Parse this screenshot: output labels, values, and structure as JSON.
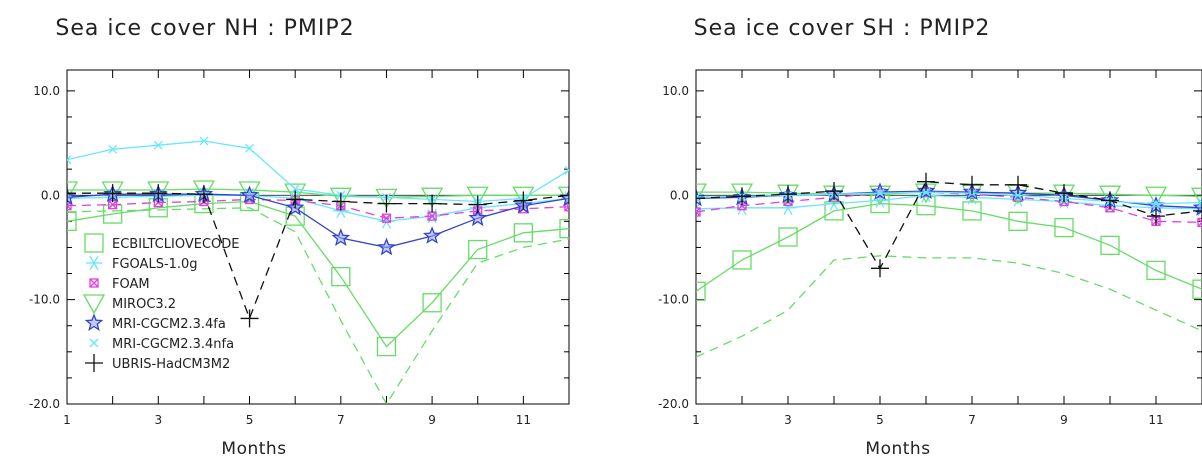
{
  "chart_data": [
    {
      "type": "line",
      "title": "Sea ice cover NH : PMIP2",
      "xlabel": "Months",
      "ylabel": "",
      "xlim": [
        1,
        12
      ],
      "ylim": [
        -20,
        12
      ],
      "xticks": [
        1,
        3,
        5,
        7,
        9,
        11
      ],
      "yticks": [
        "10.0",
        "0.0",
        "-10.0",
        "-20.0"
      ],
      "yticks_values": [
        10,
        0,
        -10,
        -20
      ],
      "grid": false,
      "legend_position": "bottom-left",
      "x": [
        1,
        2,
        3,
        4,
        5,
        6,
        7,
        8,
        9,
        10,
        11,
        12
      ],
      "series": [
        {
          "name": "ECBILTCLIOVECODE",
          "color": "#66dd66",
          "marker": "square",
          "dash": false,
          "values": [
            -2.5,
            -1.8,
            -1.2,
            -0.8,
            -0.6,
            -2.0,
            -7.8,
            -14.5,
            -10.3,
            -5.2,
            -3.6,
            -3.2
          ]
        },
        {
          "name": "",
          "color": "#66dd66",
          "marker": "none",
          "dash": true,
          "values": [
            -1.6,
            -1.5,
            -1.4,
            -1.3,
            -1.2,
            -3.5,
            -12.0,
            -20.0,
            -13.0,
            -6.5,
            -5.0,
            -4.2
          ]
        },
        {
          "name": "FGOALS-1.0g",
          "color": "#66e6ff",
          "marker": "asterisk",
          "dash": false,
          "values": [
            -0.3,
            -0.2,
            -0.1,
            0.0,
            0.0,
            -0.3,
            -1.5,
            -2.5,
            -2.0,
            -1.2,
            -0.8,
            -0.3
          ]
        },
        {
          "name": "FOAM",
          "color": "#e040e0",
          "marker": "xsquare",
          "dash": true,
          "values": [
            -1.0,
            -0.9,
            -0.7,
            -0.6,
            -0.4,
            -0.5,
            -1.0,
            -2.2,
            -2.0,
            -1.5,
            -1.3,
            -1.1
          ]
        },
        {
          "name": "MIROC3.2",
          "color": "#66dd66",
          "marker": "triangle",
          "dash": false,
          "values": [
            0.5,
            0.5,
            0.5,
            0.6,
            0.5,
            0.3,
            -0.1,
            -0.2,
            -0.1,
            0.0,
            0.0,
            0.0
          ]
        },
        {
          "name": "MRI-CGCM2.3.4fa",
          "color": "#3344cc",
          "marker": "star",
          "dash": false,
          "values": [
            -0.2,
            0.1,
            0.1,
            0.1,
            0.0,
            -1.2,
            -4.1,
            -5.0,
            -3.9,
            -2.2,
            -1.0,
            -0.3
          ]
        },
        {
          "name": "MRI-CGCM2.3.4nfa",
          "color": "#66e6ff",
          "marker": "x",
          "dash": false,
          "values": [
            3.4,
            4.4,
            4.8,
            5.2,
            4.5,
            0.6,
            0.0,
            -0.2,
            -0.4,
            -0.6,
            -0.3,
            2.4
          ]
        },
        {
          "name": "UBRIS-HadCM3M2",
          "color": "#111111",
          "marker": "plus",
          "dash": true,
          "values": [
            0.2,
            0.2,
            0.2,
            0.1,
            -11.8,
            -0.4,
            -0.6,
            -0.8,
            -0.8,
            -0.9,
            -0.5,
            0.0
          ]
        }
      ]
    },
    {
      "type": "line",
      "title": "Sea ice cover SH : PMIP2",
      "xlabel": "Months",
      "ylabel": "",
      "xlim": [
        1,
        12
      ],
      "ylim": [
        -20,
        12
      ],
      "xticks": [
        1,
        3,
        5,
        7,
        9,
        11
      ],
      "yticks": [
        "10.0",
        "0.0",
        "-10.0",
        "-20.0"
      ],
      "yticks_values": [
        10,
        0,
        -10,
        -20
      ],
      "grid": false,
      "x": [
        1,
        2,
        3,
        4,
        5,
        6,
        7,
        8,
        9,
        10,
        11,
        12
      ],
      "series": [
        {
          "name": "ECBILTCLIOVECODE",
          "color": "#66dd66",
          "marker": "square",
          "dash": false,
          "values": [
            -9.2,
            -6.2,
            -4.0,
            -1.5,
            -0.8,
            -1.0,
            -1.5,
            -2.5,
            -3.1,
            -4.8,
            -7.2,
            -9.0
          ]
        },
        {
          "name": "",
          "color": "#66dd66",
          "marker": "none",
          "dash": true,
          "values": [
            -15.5,
            -13.5,
            -11.0,
            -6.2,
            -5.8,
            -6.0,
            -6.0,
            -6.5,
            -7.5,
            -9.0,
            -11.0,
            -13.0
          ]
        },
        {
          "name": "FGOALS-1.0g",
          "color": "#66e6ff",
          "marker": "asterisk",
          "dash": false,
          "values": [
            -1.3,
            -1.2,
            -1.2,
            -0.8,
            -0.5,
            0.0,
            -0.2,
            -0.4,
            -0.6,
            -1.0,
            -1.2,
            -1.3
          ]
        },
        {
          "name": "FOAM",
          "color": "#e040e0",
          "marker": "xsquare",
          "dash": true,
          "values": [
            -1.6,
            -1.0,
            -0.6,
            -0.2,
            0.2,
            0.3,
            0.1,
            -0.2,
            -0.6,
            -1.2,
            -2.5,
            -2.6
          ]
        },
        {
          "name": "MIROC3.2",
          "color": "#66dd66",
          "marker": "triangle",
          "dash": false,
          "values": [
            0.3,
            0.3,
            0.2,
            0.1,
            0.1,
            0.3,
            0.3,
            0.2,
            0.2,
            0.1,
            0.0,
            -0.1
          ]
        },
        {
          "name": "MRI-CGCM2.3.4fa",
          "color": "#3344cc",
          "marker": "star",
          "dash": false,
          "values": [
            -0.3,
            -0.2,
            0.0,
            0.1,
            0.3,
            0.4,
            0.3,
            0.2,
            0.0,
            -0.5,
            -1.0,
            -1.2
          ]
        },
        {
          "name": "MRI-CGCM2.3.4nfa",
          "color": "#66e6ff",
          "marker": "x",
          "dash": false,
          "values": [
            -0.2,
            -0.1,
            0.0,
            0.1,
            0.2,
            0.3,
            0.2,
            0.0,
            -0.3,
            -0.6,
            -0.8,
            -0.7
          ]
        },
        {
          "name": "UBRIS-HadCM3M2",
          "color": "#111111",
          "marker": "plus",
          "dash": true,
          "values": [
            -0.3,
            -0.1,
            0.1,
            0.4,
            -7.0,
            1.3,
            1.0,
            1.0,
            0.2,
            -0.5,
            -2.0,
            -1.5
          ]
        }
      ]
    }
  ]
}
